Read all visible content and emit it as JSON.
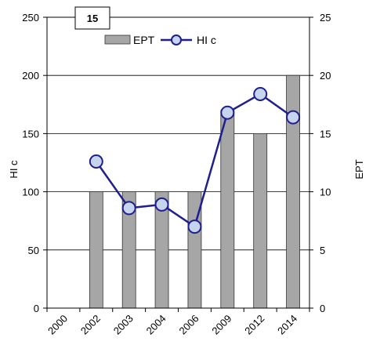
{
  "chart_data": {
    "type": "bar",
    "panel_label": "15",
    "categories": [
      "2000",
      "2002",
      "2003",
      "2004",
      "2006",
      "2009",
      "2012",
      "2014"
    ],
    "series": [
      {
        "name": "EPT",
        "type": "bar",
        "axis": "right",
        "color": "#a6a6a6",
        "values": [
          null,
          10,
          10,
          10,
          10,
          17,
          15,
          20
        ]
      },
      {
        "name": "HI c",
        "type": "line",
        "axis": "left",
        "color": "#1f1f8f",
        "marker_fill": "#c6d4ee",
        "values": [
          null,
          126,
          86,
          89,
          70,
          168,
          184,
          164
        ]
      }
    ],
    "y_left": {
      "label": "HI c",
      "lim": [
        0,
        250
      ],
      "ticks": [
        "0",
        "50",
        "100",
        "150",
        "200",
        "250"
      ]
    },
    "y_right": {
      "label": "EPT",
      "lim": [
        0,
        25
      ],
      "ticks": [
        "0",
        "5",
        "10",
        "15",
        "20",
        "25"
      ]
    },
    "grid": "horizontal",
    "legend_position": "top"
  }
}
